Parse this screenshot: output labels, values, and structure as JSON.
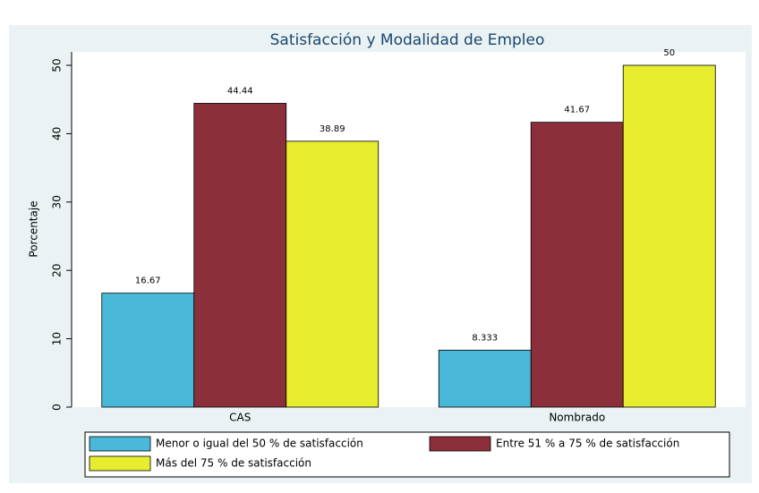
{
  "chart_data": {
    "type": "bar",
    "title": "Satisfacción y Modalidad de Empleo",
    "ylabel": "Porcentaje",
    "categories": [
      "CAS",
      "Nombrado"
    ],
    "series": [
      {
        "name": "Menor o igual del 50 % de satisfacción",
        "color": "#4ab9d9",
        "values": [
          16.67,
          8.333
        ]
      },
      {
        "name": "Entre 51 % a 75 % de satisfacción",
        "color": "#8b2f3a",
        "values": [
          44.44,
          41.67
        ]
      },
      {
        "name": "Más del 75 % de satisfacción",
        "color": "#e6ec2e",
        "values": [
          38.89,
          50
        ]
      }
    ],
    "ylim": [
      0,
      50
    ],
    "yticks": [
      0,
      10,
      20,
      30,
      40,
      50
    ],
    "grid": false
  }
}
